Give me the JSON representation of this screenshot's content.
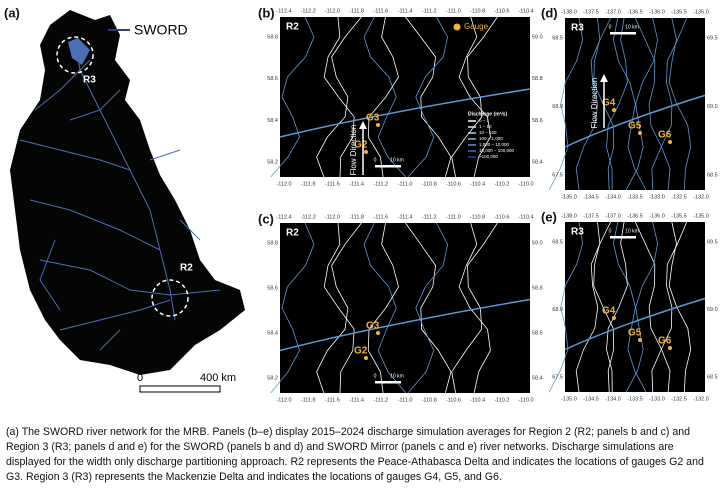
{
  "panel_a": {
    "label": "(a)",
    "legend": "SWORD",
    "regions": [
      "R3",
      "R2"
    ],
    "scale": [
      "0",
      "400 km"
    ]
  },
  "panels": [
    {
      "label": "(b)",
      "region": "R2",
      "gauge_legend": "Gauge",
      "ticks_top": [
        "-112.4",
        "-112.2",
        "-112.0",
        "-111.8",
        "-111.6",
        "-111.4",
        "-111.2",
        "-111.0",
        "-110.8",
        "-110.6",
        "-110.4"
      ],
      "ticks_bottom": [
        "-112.0",
        "-111.8",
        "-111.6",
        "-111.4",
        "-111.2",
        "-111.0",
        "-110.8",
        "-110.6",
        "-110.4",
        "-110.2",
        "-110.0"
      ],
      "ticks_left": [
        "58.8",
        "58.6",
        "58.4",
        "58.2"
      ],
      "ticks_right": [
        "59.0",
        "58.8",
        "58.6",
        "58.4"
      ],
      "gauges": [
        "G3",
        "G2"
      ],
      "flow": "Flow Direction",
      "scale": [
        "0",
        "10 km"
      ],
      "legend": {
        "title": "Discharge (m³/s)",
        "items": [
          "0 – 1",
          "1 – 10",
          "10 – 100",
          "100 – 1,000",
          "1,000 – 10,000",
          "10,000 – 100,000",
          ">100,000"
        ]
      }
    },
    {
      "label": "(c)",
      "region": "R2",
      "ticks_top": [
        "-112.4",
        "-112.2",
        "-112.0",
        "-111.8",
        "-111.6",
        "-111.4",
        "-111.2",
        "-111.0",
        "-110.8",
        "-110.6",
        "-110.4"
      ],
      "ticks_bottom": [
        "-112.0",
        "-111.8",
        "-111.6",
        "-111.4",
        "-111.2",
        "-111.0",
        "-110.8",
        "-110.6",
        "-110.4",
        "-110.2",
        "-110.0"
      ],
      "ticks_left": [
        "58.8",
        "58.6",
        "58.4",
        "58.2"
      ],
      "ticks_right": [
        "59.0",
        "58.8",
        "58.6",
        "58.4"
      ],
      "gauges": [
        "G3",
        "G2"
      ],
      "scale": [
        "0",
        "10 km"
      ]
    },
    {
      "label": "(d)",
      "region": "R3",
      "ticks_top": [
        "-138.0",
        "-137.5",
        "-137.0",
        "-136.5",
        "-136.0",
        "-135.5",
        "-135.0"
      ],
      "ticks_bottom": [
        "-135.0",
        "-134.5",
        "-134.0",
        "-133.5",
        "-133.0",
        "-132.5",
        "-132.0"
      ],
      "ticks_left": [
        "68.5",
        "68.0",
        "67.5"
      ],
      "ticks_right": [
        "69.5",
        "69.0",
        "68.5"
      ],
      "gauges": [
        "G4",
        "G5",
        "G6"
      ],
      "flow": "Flow Direction",
      "scale": [
        "0",
        "10 km"
      ]
    },
    {
      "label": "(e)",
      "region": "R3",
      "ticks_top": [
        "-138.0",
        "-137.5",
        "-137.0",
        "-136.5",
        "-136.0",
        "-135.5",
        "-135.0"
      ],
      "ticks_bottom": [
        "-135.0",
        "-134.5",
        "-134.0",
        "-133.5",
        "-133.0",
        "-132.5",
        "-132.0"
      ],
      "ticks_left": [
        "68.5",
        "68.0",
        "67.5"
      ],
      "ticks_right": [
        "69.5",
        "69.0",
        "68.5"
      ],
      "gauges": [
        "G4",
        "G5",
        "G6"
      ],
      "scale": [
        "0",
        "10 km"
      ]
    }
  ],
  "caption": "(a) The SWORD river network for the MRB. Panels (b–e) display 2015–2024 discharge simulation averages for Region 2 (R2; panels b and c) and Region 3 (R3; panels d and e) for the SWORD (panels b and d) and SWORD Mirror (panels c and e) river networks. Discharge simulations are displayed for the width only discharge partitioning approach. R2 represents the Peace-Athabasca Delta and indicates the locations of gauges G2 and G3. Region 3 (R3) represents the Mackenzie Delta and indicates the locations of gauges G4, G5, and G6."
}
